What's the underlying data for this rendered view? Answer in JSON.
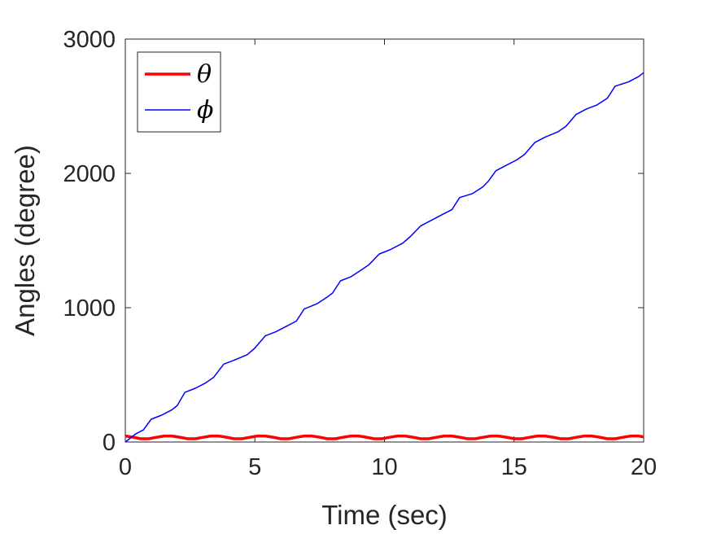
{
  "chart_data": {
    "type": "line",
    "title": "",
    "xlabel": "Time (sec)",
    "ylabel": "Angles (degree)",
    "xlim": [
      0,
      20
    ],
    "ylim": [
      0,
      3000
    ],
    "xticks": [
      0,
      5,
      10,
      15,
      20
    ],
    "yticks": [
      0,
      1000,
      2000,
      3000
    ],
    "grid": false,
    "legend_position": "top-left",
    "series": [
      {
        "name": "θ",
        "color": "#ff0000",
        "linewidth": "thick",
        "x": [
          0,
          0.3,
          0.6,
          0.9,
          1.2,
          1.5,
          1.8,
          2.1,
          2.4,
          2.7,
          3.0,
          3.3,
          3.6,
          3.9,
          4.2,
          4.5,
          4.8,
          5.1,
          5.4,
          5.7,
          6.0,
          6.3,
          6.6,
          6.9,
          7.2,
          7.5,
          7.8,
          8.1,
          8.4,
          8.7,
          9.0,
          9.3,
          9.6,
          9.9,
          10.2,
          10.5,
          10.8,
          11.1,
          11.4,
          11.7,
          12.0,
          12.3,
          12.6,
          12.9,
          13.2,
          13.5,
          13.8,
          14.1,
          14.4,
          14.7,
          15.0,
          15.3,
          15.6,
          15.9,
          16.2,
          16.5,
          16.8,
          17.1,
          17.4,
          17.7,
          18.0,
          18.3,
          18.6,
          18.9,
          19.2,
          19.5,
          19.8,
          20.0
        ],
        "y": [
          45,
          36,
          24,
          24,
          35,
          45,
          45,
          36,
          24,
          24,
          35,
          45,
          45,
          36,
          24,
          24,
          35,
          45,
          45,
          36,
          24,
          24,
          35,
          45,
          45,
          36,
          24,
          24,
          35,
          45,
          45,
          36,
          24,
          24,
          35,
          45,
          45,
          36,
          24,
          24,
          35,
          45,
          45,
          36,
          24,
          24,
          35,
          45,
          45,
          36,
          24,
          24,
          35,
          45,
          45,
          36,
          24,
          24,
          35,
          45,
          45,
          36,
          24,
          24,
          35,
          45,
          45,
          38
        ]
      },
      {
        "name": "ϕ",
        "color": "#0000ff",
        "linewidth": "thin",
        "x": [
          0,
          0.4,
          0.7,
          1.0,
          1.4,
          1.8,
          2.0,
          2.3,
          2.7,
          3.1,
          3.4,
          3.8,
          4.2,
          4.7,
          5.0,
          5.4,
          5.8,
          6.2,
          6.6,
          6.9,
          7.4,
          7.8,
          8.0,
          8.3,
          8.7,
          9.1,
          9.4,
          9.8,
          10.2,
          10.7,
          11.0,
          11.4,
          11.8,
          12.2,
          12.6,
          12.9,
          13.4,
          13.8,
          14.0,
          14.3,
          14.7,
          15.1,
          15.4,
          15.8,
          16.2,
          16.7,
          17.0,
          17.4,
          17.8,
          18.2,
          18.6,
          18.9,
          19.4,
          19.8,
          20.0
        ],
        "y": [
          0,
          60,
          90,
          170,
          200,
          240,
          270,
          370,
          400,
          440,
          480,
          580,
          610,
          650,
          700,
          790,
          820,
          860,
          900,
          990,
          1030,
          1080,
          1110,
          1200,
          1230,
          1280,
          1320,
          1400,
          1430,
          1480,
          1530,
          1610,
          1650,
          1690,
          1730,
          1820,
          1850,
          1900,
          1940,
          2020,
          2060,
          2100,
          2140,
          2230,
          2270,
          2310,
          2350,
          2440,
          2480,
          2510,
          2560,
          2650,
          2680,
          2720,
          2750
        ]
      }
    ]
  }
}
